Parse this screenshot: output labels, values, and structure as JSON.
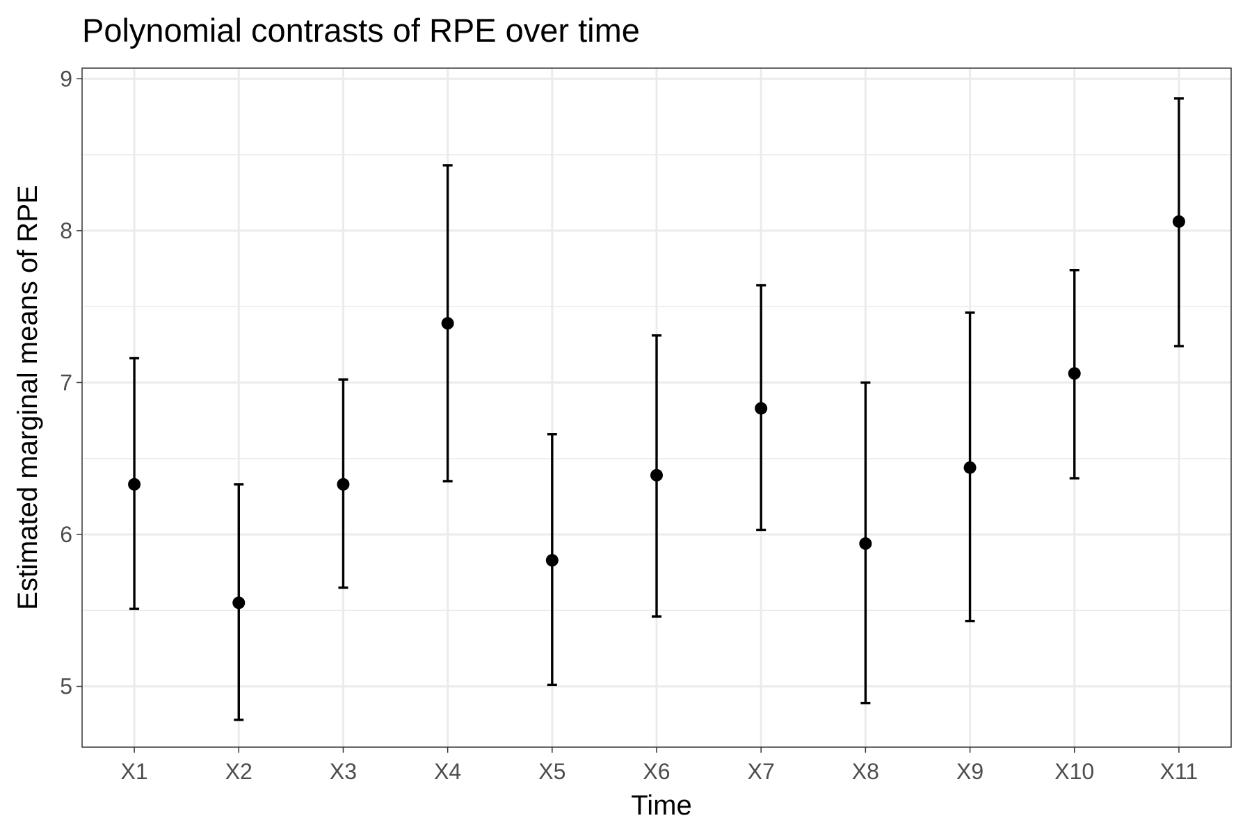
{
  "chart_data": {
    "type": "scatter",
    "title": "Polynomial contrasts of RPE over time",
    "xlabel": "Time",
    "ylabel": "Estimated marginal means of RPE",
    "categories": [
      "X1",
      "X2",
      "X3",
      "X4",
      "X5",
      "X6",
      "X7",
      "X8",
      "X9",
      "X10",
      "X11"
    ],
    "series": [
      {
        "values": [
          6.33,
          5.55,
          6.33,
          7.39,
          5.83,
          6.39,
          6.83,
          5.94,
          6.44,
          7.06,
          8.06
        ],
        "lower": [
          5.51,
          4.78,
          5.65,
          6.35,
          5.01,
          5.46,
          6.03,
          4.89,
          5.43,
          6.37,
          7.24
        ],
        "upper": [
          7.16,
          6.33,
          7.02,
          8.43,
          6.66,
          7.31,
          7.64,
          7.0,
          7.46,
          7.74,
          8.87
        ]
      }
    ],
    "ylim": [
      4.6,
      9.07
    ],
    "yticks": [
      5,
      6,
      7,
      8,
      9
    ],
    "grid": true,
    "legend": "none",
    "colors": {
      "point": "#000000",
      "errorbar": "#000000",
      "grid": "#ebebeb",
      "panel_border": "#333333",
      "tick_label": "#4d4d4d"
    }
  }
}
